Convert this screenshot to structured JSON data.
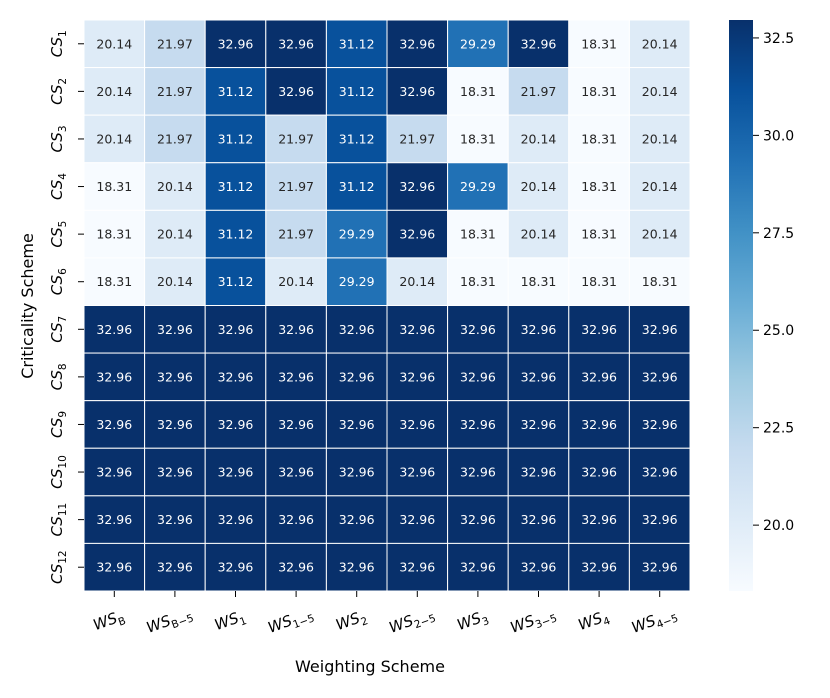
{
  "chart_data": {
    "type": "heatmap",
    "xlabel": "Weighting Scheme",
    "ylabel": "Criticality Scheme",
    "columns": [
      {
        "base": "WS",
        "sub": "B"
      },
      {
        "base": "WS",
        "sub": "B−5"
      },
      {
        "base": "WS",
        "sub": "1"
      },
      {
        "base": "WS",
        "sub": "1−5"
      },
      {
        "base": "WS",
        "sub": "2"
      },
      {
        "base": "WS",
        "sub": "2−5"
      },
      {
        "base": "WS",
        "sub": "3"
      },
      {
        "base": "WS",
        "sub": "3−5"
      },
      {
        "base": "WS",
        "sub": "4"
      },
      {
        "base": "WS",
        "sub": "4−5"
      }
    ],
    "rows": [
      {
        "base": "CS",
        "sub": "1"
      },
      {
        "base": "CS",
        "sub": "2"
      },
      {
        "base": "CS",
        "sub": "3"
      },
      {
        "base": "CS",
        "sub": "4"
      },
      {
        "base": "CS",
        "sub": "5"
      },
      {
        "base": "CS",
        "sub": "6"
      },
      {
        "base": "CS",
        "sub": "7"
      },
      {
        "base": "CS",
        "sub": "8"
      },
      {
        "base": "CS",
        "sub": "9"
      },
      {
        "base": "CS",
        "sub": "10"
      },
      {
        "base": "CS",
        "sub": "11"
      },
      {
        "base": "CS",
        "sub": "12"
      }
    ],
    "values": [
      [
        20.14,
        21.97,
        32.96,
        32.96,
        31.12,
        32.96,
        29.29,
        32.96,
        18.31,
        20.14
      ],
      [
        20.14,
        21.97,
        31.12,
        32.96,
        31.12,
        32.96,
        18.31,
        21.97,
        18.31,
        20.14
      ],
      [
        20.14,
        21.97,
        31.12,
        21.97,
        31.12,
        21.97,
        18.31,
        20.14,
        18.31,
        20.14
      ],
      [
        18.31,
        20.14,
        31.12,
        21.97,
        31.12,
        32.96,
        29.29,
        20.14,
        18.31,
        20.14
      ],
      [
        18.31,
        20.14,
        31.12,
        21.97,
        29.29,
        32.96,
        18.31,
        20.14,
        18.31,
        20.14
      ],
      [
        18.31,
        20.14,
        31.12,
        20.14,
        29.29,
        20.14,
        18.31,
        18.31,
        18.31,
        18.31
      ],
      [
        32.96,
        32.96,
        32.96,
        32.96,
        32.96,
        32.96,
        32.96,
        32.96,
        32.96,
        32.96
      ],
      [
        32.96,
        32.96,
        32.96,
        32.96,
        32.96,
        32.96,
        32.96,
        32.96,
        32.96,
        32.96
      ],
      [
        32.96,
        32.96,
        32.96,
        32.96,
        32.96,
        32.96,
        32.96,
        32.96,
        32.96,
        32.96
      ],
      [
        32.96,
        32.96,
        32.96,
        32.96,
        32.96,
        32.96,
        32.96,
        32.96,
        32.96,
        32.96
      ],
      [
        32.96,
        32.96,
        32.96,
        32.96,
        32.96,
        32.96,
        32.96,
        32.96,
        32.96,
        32.96
      ],
      [
        32.96,
        32.96,
        32.96,
        32.96,
        32.96,
        32.96,
        32.96,
        32.96,
        32.96,
        32.96
      ]
    ],
    "colorbar": {
      "min": 18.31,
      "max": 32.96,
      "ticks": [
        20.0,
        22.5,
        25.0,
        27.5,
        30.0,
        32.5
      ],
      "tick_labels": [
        "20.0",
        "22.5",
        "25.0",
        "27.5",
        "30.0",
        "32.5"
      ],
      "colormap": "Blues"
    },
    "grid": true
  }
}
